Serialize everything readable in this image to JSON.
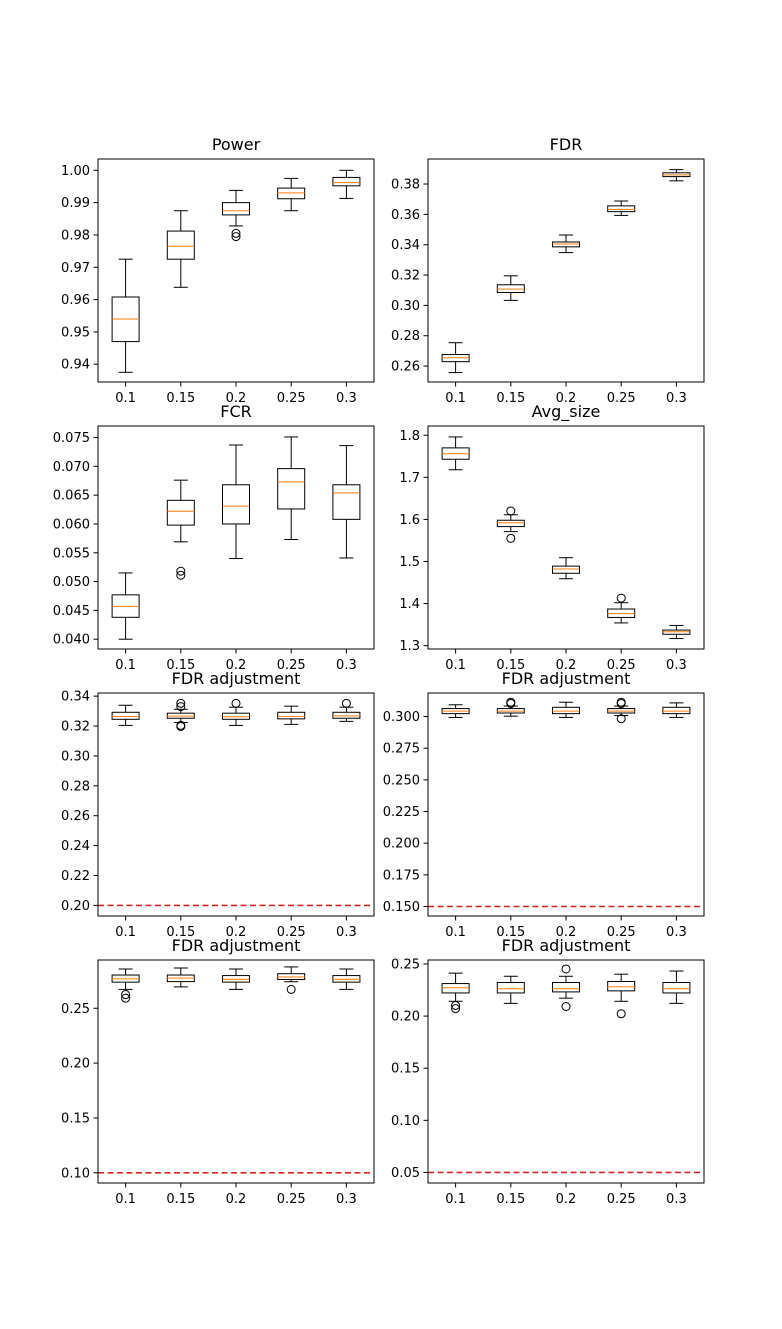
{
  "figure": {
    "colors": {
      "box": "#000000",
      "median": "#ff7f0e",
      "reference_line": "#d62728",
      "background": "#ffffff"
    }
  },
  "chart_data": [
    {
      "type": "box",
      "title": "Power",
      "categories": [
        "0.1",
        "0.15",
        "0.2",
        "0.25",
        "0.3"
      ],
      "ylim": [
        0.9345,
        1.0035
      ],
      "yticks": [
        0.94,
        0.95,
        0.96,
        0.97,
        0.98,
        0.99,
        1.0
      ],
      "ytick_labels": [
        "0.94",
        "0.95",
        "0.96",
        "0.97",
        "0.98",
        "0.99",
        "1.00"
      ],
      "boxes": [
        {
          "whislo": 0.9375,
          "q1": 0.947,
          "med": 0.954,
          "q3": 0.9608,
          "whishi": 0.9725,
          "fliers": []
        },
        {
          "whislo": 0.9638,
          "q1": 0.9725,
          "med": 0.9765,
          "q3": 0.9812,
          "whishi": 0.9875,
          "fliers": []
        },
        {
          "whislo": 0.9828,
          "q1": 0.9862,
          "med": 0.9875,
          "q3": 0.99,
          "whishi": 0.9938,
          "fliers": [
            0.9795,
            0.9805
          ]
        },
        {
          "whislo": 0.9875,
          "q1": 0.9912,
          "med": 0.993,
          "q3": 0.9945,
          "whishi": 0.9975,
          "fliers": []
        },
        {
          "whislo": 0.9913,
          "q1": 0.9952,
          "med": 0.9962,
          "q3": 0.9978,
          "whishi": 1.0,
          "fliers": []
        }
      ],
      "hline": null,
      "grid": false
    },
    {
      "type": "box",
      "title": "FDR",
      "categories": [
        "0.1",
        "0.15",
        "0.2",
        "0.25",
        "0.3"
      ],
      "ylim": [
        0.2495,
        0.3965
      ],
      "yticks": [
        0.26,
        0.28,
        0.3,
        0.32,
        0.34,
        0.36,
        0.38
      ],
      "ytick_labels": [
        "0.26",
        "0.28",
        "0.30",
        "0.32",
        "0.34",
        "0.36",
        "0.38"
      ],
      "boxes": [
        {
          "whislo": 0.2557,
          "q1": 0.2629,
          "med": 0.2655,
          "q3": 0.2676,
          "whishi": 0.2754,
          "fliers": []
        },
        {
          "whislo": 0.3033,
          "q1": 0.3085,
          "med": 0.3107,
          "q3": 0.3136,
          "whishi": 0.3195,
          "fliers": []
        },
        {
          "whislo": 0.3348,
          "q1": 0.3386,
          "med": 0.3405,
          "q3": 0.3418,
          "whishi": 0.3464,
          "fliers": []
        },
        {
          "whislo": 0.3593,
          "q1": 0.3618,
          "med": 0.3633,
          "q3": 0.3656,
          "whishi": 0.3688,
          "fliers": []
        },
        {
          "whislo": 0.3821,
          "q1": 0.3849,
          "med": 0.386,
          "q3": 0.3874,
          "whishi": 0.3895,
          "fliers": []
        }
      ],
      "hline": null,
      "grid": false
    },
    {
      "type": "box",
      "title": "FCR",
      "categories": [
        "0.1",
        "0.15",
        "0.2",
        "0.25",
        "0.3"
      ],
      "ylim": [
        0.0383,
        0.077
      ],
      "yticks": [
        0.04,
        0.045,
        0.05,
        0.055,
        0.06,
        0.065,
        0.07,
        0.075
      ],
      "ytick_labels": [
        "0.040",
        "0.045",
        "0.050",
        "0.055",
        "0.060",
        "0.065",
        "0.070",
        "0.075"
      ],
      "boxes": [
        {
          "whislo": 0.04,
          "q1": 0.0438,
          "med": 0.0457,
          "q3": 0.0477,
          "whishi": 0.0515,
          "fliers": []
        },
        {
          "whislo": 0.0569,
          "q1": 0.0598,
          "med": 0.0622,
          "q3": 0.0641,
          "whishi": 0.0676,
          "fliers": [
            0.0511,
            0.0518
          ]
        },
        {
          "whislo": 0.054,
          "q1": 0.06,
          "med": 0.0631,
          "q3": 0.0668,
          "whishi": 0.0737,
          "fliers": []
        },
        {
          "whislo": 0.0573,
          "q1": 0.0626,
          "med": 0.0673,
          "q3": 0.0696,
          "whishi": 0.0751,
          "fliers": []
        },
        {
          "whislo": 0.0541,
          "q1": 0.0608,
          "med": 0.0654,
          "q3": 0.0668,
          "whishi": 0.0736,
          "fliers": []
        }
      ],
      "hline": null,
      "grid": false
    },
    {
      "type": "box",
      "title": "Avg_size",
      "categories": [
        "0.1",
        "0.15",
        "0.2",
        "0.25",
        "0.3"
      ],
      "ylim": [
        1.292,
        1.822
      ],
      "yticks": [
        1.3,
        1.4,
        1.5,
        1.6,
        1.7,
        1.8
      ],
      "ytick_labels": [
        "1.3",
        "1.4",
        "1.5",
        "1.6",
        "1.7",
        "1.8"
      ],
      "boxes": [
        {
          "whislo": 1.718,
          "q1": 1.743,
          "med": 1.756,
          "q3": 1.77,
          "whishi": 1.796,
          "fliers": []
        },
        {
          "whislo": 1.571,
          "q1": 1.583,
          "med": 1.592,
          "q3": 1.598,
          "whishi": 1.611,
          "fliers": [
            1.555,
            1.62
          ]
        },
        {
          "whislo": 1.459,
          "q1": 1.472,
          "med": 1.482,
          "q3": 1.489,
          "whishi": 1.509,
          "fliers": []
        },
        {
          "whislo": 1.354,
          "q1": 1.367,
          "med": 1.376,
          "q3": 1.387,
          "whishi": 1.402,
          "fliers": [
            1.413
          ]
        },
        {
          "whislo": 1.317,
          "q1": 1.327,
          "med": 1.333,
          "q3": 1.337,
          "whishi": 1.348,
          "fliers": []
        }
      ],
      "hline": null,
      "grid": false
    },
    {
      "type": "box",
      "title": "FDR adjustment",
      "categories": [
        "0.1",
        "0.15",
        "0.2",
        "0.25",
        "0.3"
      ],
      "ylim": [
        0.1929,
        0.3421
      ],
      "yticks": [
        0.2,
        0.22,
        0.24,
        0.26,
        0.28,
        0.3,
        0.32,
        0.34
      ],
      "ytick_labels": [
        "0.20",
        "0.22",
        "0.24",
        "0.26",
        "0.28",
        "0.30",
        "0.32",
        "0.34"
      ],
      "boxes": [
        {
          "whislo": 0.3204,
          "q1": 0.3245,
          "med": 0.3264,
          "q3": 0.3292,
          "whishi": 0.3339,
          "fliers": []
        },
        {
          "whislo": 0.3224,
          "q1": 0.3252,
          "med": 0.3266,
          "q3": 0.3286,
          "whishi": 0.3312,
          "fliers": [
            0.3197,
            0.3204,
            0.333,
            0.3352
          ]
        },
        {
          "whislo": 0.3204,
          "q1": 0.3245,
          "med": 0.3262,
          "q3": 0.3286,
          "whishi": 0.3326,
          "fliers": [
            0.3352
          ]
        },
        {
          "whislo": 0.3211,
          "q1": 0.3248,
          "med": 0.3265,
          "q3": 0.3292,
          "whishi": 0.3333,
          "fliers": []
        },
        {
          "whislo": 0.3231,
          "q1": 0.3252,
          "med": 0.3268,
          "q3": 0.3292,
          "whishi": 0.3326,
          "fliers": [
            0.3352
          ]
        }
      ],
      "hline": 0.2,
      "grid": false
    },
    {
      "type": "box",
      "title": "FDR adjustment",
      "categories": [
        "0.1",
        "0.15",
        "0.2",
        "0.25",
        "0.3"
      ],
      "ylim": [
        0.1425,
        0.3186
      ],
      "yticks": [
        0.15,
        0.175,
        0.2,
        0.225,
        0.25,
        0.275,
        0.3
      ],
      "ytick_labels": [
        "0.150",
        "0.175",
        "0.200",
        "0.225",
        "0.250",
        "0.275",
        "0.300"
      ],
      "boxes": [
        {
          "whislo": 0.2993,
          "q1": 0.3023,
          "med": 0.3043,
          "q3": 0.3063,
          "whishi": 0.3093,
          "fliers": []
        },
        {
          "whislo": 0.3003,
          "q1": 0.3028,
          "med": 0.3043,
          "q3": 0.3063,
          "whishi": 0.3083,
          "fliers": [
            0.3103,
            0.3113
          ]
        },
        {
          "whislo": 0.2993,
          "q1": 0.3023,
          "med": 0.3043,
          "q3": 0.3073,
          "whishi": 0.3113,
          "fliers": []
        },
        {
          "whislo": 0.3008,
          "q1": 0.3028,
          "med": 0.3043,
          "q3": 0.3063,
          "whishi": 0.3083,
          "fliers": [
            0.2983,
            0.3103,
            0.3113
          ]
        },
        {
          "whislo": 0.2993,
          "q1": 0.3023,
          "med": 0.3043,
          "q3": 0.3073,
          "whishi": 0.3108,
          "fliers": []
        }
      ],
      "hline": 0.15,
      "grid": false
    },
    {
      "type": "box",
      "title": "FDR adjustment",
      "categories": [
        "0.1",
        "0.15",
        "0.2",
        "0.25",
        "0.3"
      ],
      "ylim": [
        0.0907,
        0.294
      ],
      "yticks": [
        0.1,
        0.15,
        0.2,
        0.25
      ],
      "ytick_labels": [
        "0.10",
        "0.15",
        "0.20",
        "0.25"
      ],
      "boxes": [
        {
          "whislo": 0.2672,
          "q1": 0.2738,
          "med": 0.2768,
          "q3": 0.2803,
          "whishi": 0.2858,
          "fliers": [
            0.2592,
            0.2625
          ]
        },
        {
          "whislo": 0.2695,
          "q1": 0.2743,
          "med": 0.2775,
          "q3": 0.2803,
          "whishi": 0.2867,
          "fliers": []
        },
        {
          "whislo": 0.2672,
          "q1": 0.2738,
          "med": 0.2765,
          "q3": 0.2798,
          "whishi": 0.2858,
          "fliers": []
        },
        {
          "whislo": 0.2742,
          "q1": 0.2762,
          "med": 0.2785,
          "q3": 0.2815,
          "whishi": 0.2877,
          "fliers": [
            0.2672
          ]
        },
        {
          "whislo": 0.2672,
          "q1": 0.2738,
          "med": 0.2765,
          "q3": 0.2798,
          "whishi": 0.2858,
          "fliers": []
        }
      ],
      "hline": 0.1,
      "grid": false
    },
    {
      "type": "box",
      "title": "FDR adjustment",
      "categories": [
        "0.1",
        "0.15",
        "0.2",
        "0.25",
        "0.3"
      ],
      "ylim": [
        0.0399,
        0.2538
      ],
      "yticks": [
        0.05,
        0.1,
        0.15,
        0.2,
        0.25
      ],
      "ytick_labels": [
        "0.05",
        "0.10",
        "0.15",
        "0.20",
        "0.25"
      ],
      "boxes": [
        {
          "whislo": 0.2142,
          "q1": 0.2222,
          "med": 0.2272,
          "q3": 0.2312,
          "whishi": 0.2412,
          "fliers": [
            0.2072,
            0.2102
          ]
        },
        {
          "whislo": 0.2122,
          "q1": 0.2222,
          "med": 0.2262,
          "q3": 0.2322,
          "whishi": 0.2382,
          "fliers": []
        },
        {
          "whislo": 0.2172,
          "q1": 0.2232,
          "med": 0.2262,
          "q3": 0.2322,
          "whishi": 0.2382,
          "fliers": [
            0.2092,
            0.2452
          ]
        },
        {
          "whislo": 0.2142,
          "q1": 0.2242,
          "med": 0.2282,
          "q3": 0.2332,
          "whishi": 0.2402,
          "fliers": [
            0.2022
          ]
        },
        {
          "whislo": 0.2122,
          "q1": 0.2222,
          "med": 0.2262,
          "q3": 0.2322,
          "whishi": 0.2432,
          "fliers": []
        }
      ],
      "hline": 0.05,
      "grid": false
    }
  ]
}
